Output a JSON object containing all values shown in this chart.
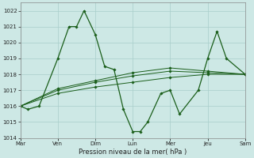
{
  "bg_color": "#cde8e5",
  "grid_color": "#a8ceca",
  "line_color": "#1a5e1a",
  "xlabel": "Pression niveau de la mer( hPa )",
  "ylim": [
    1014,
    1022.5
  ],
  "yticks": [
    1014,
    1015,
    1016,
    1017,
    1018,
    1019,
    1020,
    1021,
    1022
  ],
  "day_positions": [
    0,
    2,
    4,
    6,
    8,
    10,
    12
  ],
  "day_labels": [
    "Mar",
    "Ven",
    "Dim",
    "Lun",
    "Mer",
    "Jeu",
    "Sam"
  ],
  "xlim": [
    0,
    12
  ],
  "curve1_x": [
    0,
    0.4,
    1.0,
    2.0,
    2.6,
    3.0,
    3.4,
    4.0,
    4.5,
    5.0,
    5.5,
    6.0,
    6.4,
    6.8,
    7.5,
    8.0,
    8.5,
    9.5,
    10.0,
    10.5,
    11.0,
    12.0
  ],
  "curve1_y": [
    1016.0,
    1015.8,
    1016.0,
    1019.0,
    1021.0,
    1021.0,
    1022.0,
    1020.5,
    1018.5,
    1018.3,
    1015.8,
    1014.4,
    1014.4,
    1015.0,
    1016.8,
    1017.0,
    1015.5,
    1017.0,
    1019.0,
    1020.7,
    1019.0,
    1018.0
  ],
  "curve2_x": [
    0,
    2,
    4,
    6,
    8,
    10,
    12
  ],
  "curve2_y": [
    1016.0,
    1016.8,
    1017.2,
    1017.5,
    1017.8,
    1018.0,
    1018.0
  ],
  "curve3_x": [
    0,
    2,
    4,
    6,
    8,
    10,
    12
  ],
  "curve3_y": [
    1016.0,
    1017.0,
    1017.5,
    1017.9,
    1018.2,
    1018.1,
    1018.0
  ],
  "curve4_x": [
    0,
    2,
    4,
    6,
    8,
    10,
    12
  ],
  "curve4_y": [
    1016.0,
    1017.1,
    1017.6,
    1018.1,
    1018.4,
    1018.2,
    1018.0
  ]
}
